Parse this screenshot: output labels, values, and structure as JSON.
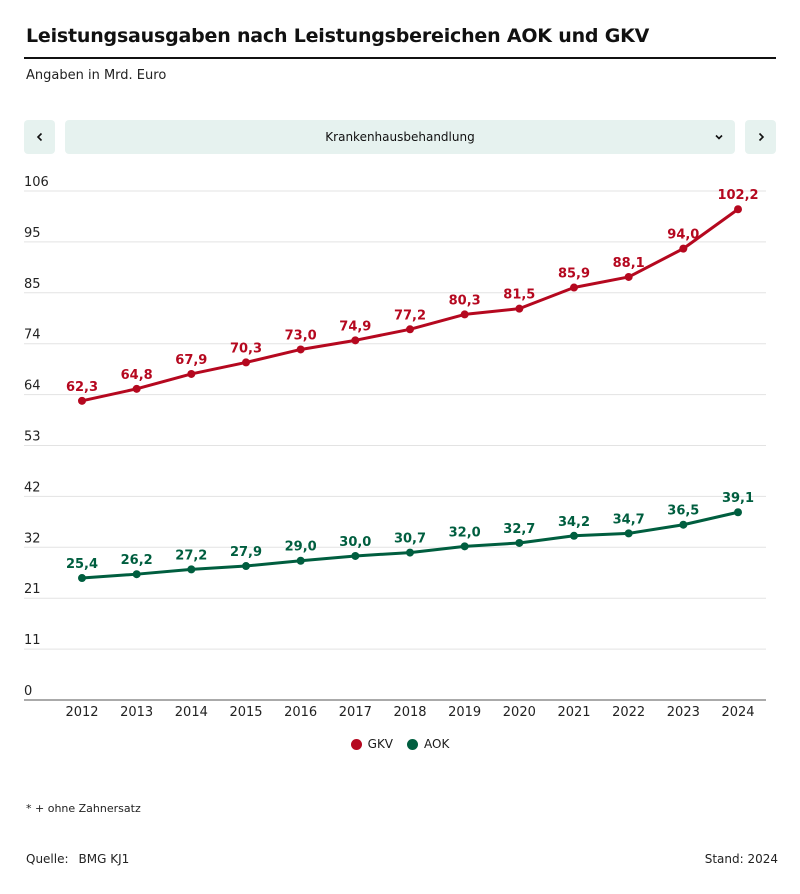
{
  "header": {
    "title": "Leistungsausgaben nach Leistungsbereichen AOK und GKV",
    "subtitle": "Angaben in Mrd. Euro"
  },
  "controls": {
    "prev_icon": "chevron-left-icon",
    "next_icon": "chevron-right-icon",
    "dropdown_icon": "chevron-down-icon",
    "selected_category": "Krankenhausbehandlung"
  },
  "colors": {
    "gkv": "#b5081f",
    "aok": "#005e3f",
    "control_bg": "#e6f2ef",
    "grid": "#e3e3e3",
    "axis": "#555555"
  },
  "chart_data": {
    "type": "line",
    "title": "Leistungsausgaben nach Leistungsbereichen AOK und GKV",
    "subtitle": "Angaben in Mrd. Euro",
    "xlabel": "",
    "ylabel": "",
    "x": [
      "2012",
      "2013",
      "2014",
      "2015",
      "2016",
      "2017",
      "2018",
      "2019",
      "2020",
      "2021",
      "2022",
      "2023",
      "2024"
    ],
    "ylim": [
      0,
      106
    ],
    "yticks": [
      0,
      10.6,
      21.2,
      31.8,
      42.4,
      53,
      63.6,
      74.2,
      84.8,
      95.4,
      106
    ],
    "ytick_labels": [
      "0",
      "11",
      "21",
      "32",
      "42",
      "53",
      "64",
      "74",
      "85",
      "95",
      "106"
    ],
    "grid": true,
    "legend_position": "bottom-center",
    "series": [
      {
        "name": "GKV",
        "color": "#b5081f",
        "values": [
          62.3,
          64.8,
          67.9,
          70.3,
          73.0,
          74.9,
          77.2,
          80.3,
          81.5,
          85.9,
          88.1,
          94.0,
          102.2
        ],
        "labels": [
          "62,3",
          "64,8",
          "67,9",
          "70,3",
          "73,0",
          "74,9",
          "77,2",
          "80,3",
          "81,5",
          "85,9",
          "88,1",
          "94,0",
          "102,2"
        ]
      },
      {
        "name": "AOK",
        "color": "#005e3f",
        "values": [
          25.4,
          26.2,
          27.2,
          27.9,
          29.0,
          30.0,
          30.7,
          32.0,
          32.7,
          34.2,
          34.7,
          36.5,
          39.1
        ],
        "labels": [
          "25,4",
          "26,2",
          "27,2",
          "27,9",
          "29,0",
          "30,0",
          "30,7",
          "32,0",
          "32,7",
          "34,2",
          "34,7",
          "36,5",
          "39,1"
        ]
      }
    ]
  },
  "legend": [
    {
      "label": "GKV",
      "color": "#b5081f"
    },
    {
      "label": "AOK",
      "color": "#005e3f"
    }
  ],
  "footer": {
    "footnote": "* + ohne Zahnersatz",
    "source_label": "Quelle:",
    "source_value": "BMG KJ1",
    "stand": "Stand: 2024"
  }
}
